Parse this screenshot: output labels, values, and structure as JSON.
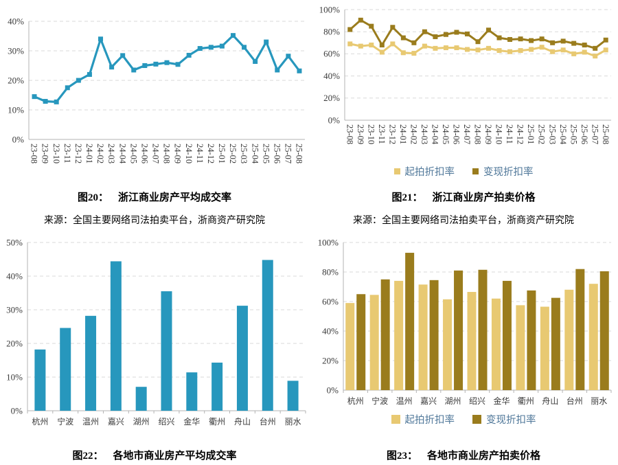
{
  "colors": {
    "teal": "#2797BD",
    "light_gold": "#E8C972",
    "dark_gold": "#9A7C1D",
    "legend_text": "#4F7799",
    "grid_line": "#D9D9D9",
    "axis_line": "#B3B3B3",
    "tick_text": "#3A3A3A"
  },
  "charts": [
    {
      "caption_label": "图20：",
      "caption_title": "浙江商业房产平均成交率",
      "source": "来源：全国主要网络司法拍卖平台，浙商资产研究院",
      "chart_data": {
        "type": "line",
        "x": [
          "23-08",
          "23-09",
          "23-10",
          "23-11",
          "23-12",
          "24-01",
          "24-02",
          "24-03",
          "24-04",
          "24-05",
          "24-06",
          "24-07",
          "24-08",
          "24-09",
          "24-10",
          "24-11",
          "24-12",
          "25-01",
          "25-02",
          "25-03",
          "25-04",
          "25-05",
          "25-06",
          "25-07",
          "25-08"
        ],
        "series": [
          {
            "color": "#2797BD",
            "values": [
              14.5,
              12.9,
              12.7,
              17.5,
              20,
              22,
              34,
              24.5,
              28.4,
              23.5,
              25,
              25.5,
              26,
              25.4,
              28.5,
              30.8,
              31.2,
              31.6,
              35.2,
              31.2,
              26.4,
              33,
              23.5,
              28.2,
              23.2
            ]
          }
        ],
        "ylim": [
          0,
          40
        ],
        "yticks": [
          0,
          10,
          20,
          30,
          40
        ],
        "ytick_suffix": "%",
        "grid": true,
        "legend_position": "none"
      }
    },
    {
      "caption_label": "图21：",
      "caption_title": "浙江商业房产拍卖价格",
      "source": "来源：全国主要网络司法拍卖平台，浙商资产研究院",
      "chart_data": {
        "type": "line",
        "x": [
          "23-08",
          "23-09",
          "23-10",
          "23-11",
          "23-12",
          "24-01",
          "24-02",
          "24-03",
          "24-04",
          "24-05",
          "24-06",
          "24-07",
          "24-08",
          "24-09",
          "24-10",
          "24-11",
          "24-12",
          "25-01",
          "25-02",
          "25-03",
          "25-04",
          "25-05",
          "25-06",
          "25-07",
          "25-08"
        ],
        "series": [
          {
            "name": "起拍折扣率",
            "color": "#E8C972",
            "values": [
              69,
              67,
              68,
              61.5,
              69,
              61,
              60.5,
              67,
              65,
              65.5,
              65.5,
              64,
              63.5,
              65,
              63,
              62,
              63,
              64,
              66,
              62,
              63.5,
              60,
              61.5,
              58,
              63.5
            ]
          },
          {
            "name": "变现折扣率",
            "color": "#9A7C1D",
            "values": [
              82,
              90.5,
              85,
              68,
              84,
              74.5,
              70,
              80,
              75.5,
              77.5,
              79.5,
              78,
              71,
              81.5,
              74.5,
              73,
              73.5,
              72,
              73.5,
              70,
              71.5,
              69.5,
              68,
              65,
              72.5
            ]
          }
        ],
        "ylim": [
          0,
          100
        ],
        "yticks": [
          0,
          20,
          40,
          60,
          80,
          100
        ],
        "ytick_suffix": "%",
        "grid": true,
        "legend_position": "bottom"
      }
    },
    {
      "caption_label": "图22：",
      "caption_title": "各地市商业房产平均成交率",
      "chart_data": {
        "type": "bar",
        "categories": [
          "杭州",
          "宁波",
          "温州",
          "嘉兴",
          "湖州",
          "绍兴",
          "金华",
          "衢州",
          "舟山",
          "台州",
          "丽水"
        ],
        "series": [
          {
            "color": "#2797BD",
            "values": [
              18.2,
              24.6,
              28.2,
              44.4,
              7.1,
              35.5,
              11.4,
              14.3,
              31.2,
              44.8,
              8.9
            ]
          }
        ],
        "ylim": [
          0,
          50
        ],
        "yticks": [
          0,
          10,
          20,
          30,
          40,
          50
        ],
        "ytick_suffix": "%",
        "grid": true,
        "legend_position": "none"
      }
    },
    {
      "caption_label": "图23：",
      "caption_title": "各地市商业房产拍卖价格",
      "chart_data": {
        "type": "bar",
        "categories": [
          "杭州",
          "宁波",
          "温州",
          "嘉兴",
          "湖州",
          "绍兴",
          "金华",
          "衢州",
          "舟山",
          "台州",
          "丽水"
        ],
        "series": [
          {
            "name": "起拍折扣率",
            "color": "#E8C972",
            "values": [
              59,
              64.5,
              74,
              71.5,
              61.5,
              66.5,
              62,
              57.5,
              56.5,
              68,
              72
            ]
          },
          {
            "name": "变现折扣率",
            "color": "#9A7C1D",
            "values": [
              65,
              75,
              93,
              74.5,
              81,
              81.5,
              74,
              67.5,
              62.5,
              82,
              80.5
            ]
          }
        ],
        "ylim": [
          0,
          100
        ],
        "yticks": [
          0,
          20,
          40,
          60,
          80,
          100
        ],
        "ytick_suffix": "%",
        "grid": true,
        "legend_position": "bottom"
      }
    }
  ]
}
